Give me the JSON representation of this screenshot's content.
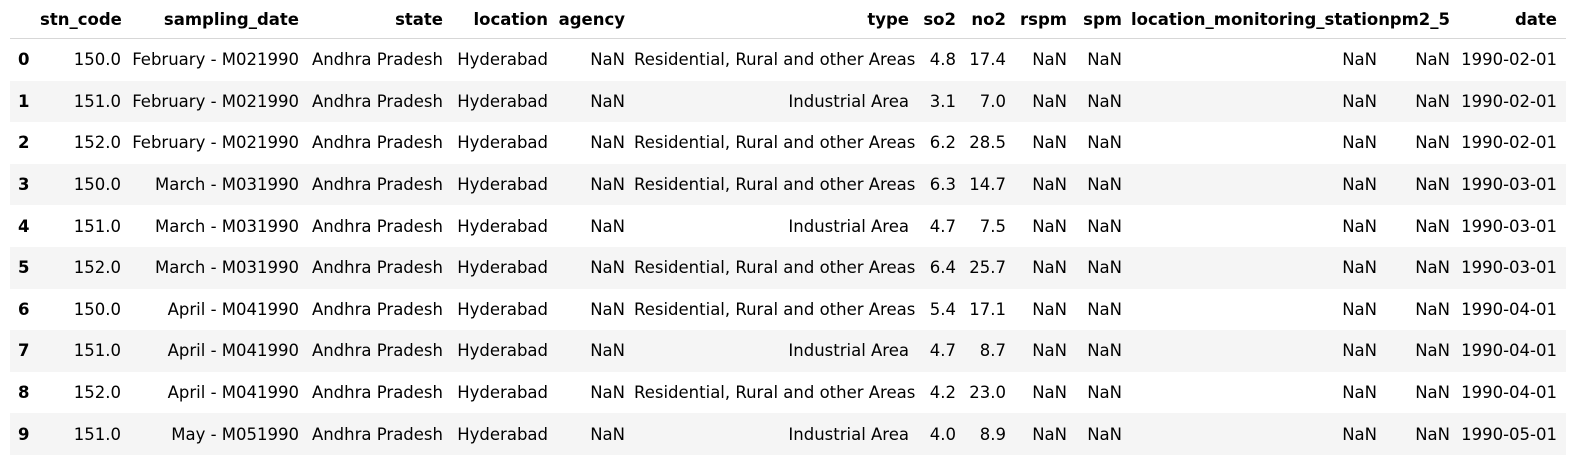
{
  "columns": [
    "stn_code",
    "sampling_date",
    "state",
    "location",
    "agency",
    "type",
    "so2",
    "no2",
    "rspm",
    "spm",
    "location_monitoring_station",
    "pm2_5",
    "date"
  ],
  "rows": [
    {
      "index": "0",
      "cells": [
        "150.0",
        "February - M021990",
        "Andhra Pradesh",
        "Hyderabad",
        "NaN",
        "Residential, Rural and other Areas",
        "4.8",
        "17.4",
        "NaN",
        "NaN",
        "NaN",
        "NaN",
        "1990-02-01"
      ]
    },
    {
      "index": "1",
      "cells": [
        "151.0",
        "February - M021990",
        "Andhra Pradesh",
        "Hyderabad",
        "NaN",
        "Industrial Area",
        "3.1",
        "7.0",
        "NaN",
        "NaN",
        "NaN",
        "NaN",
        "1990-02-01"
      ]
    },
    {
      "index": "2",
      "cells": [
        "152.0",
        "February - M021990",
        "Andhra Pradesh",
        "Hyderabad",
        "NaN",
        "Residential, Rural and other Areas",
        "6.2",
        "28.5",
        "NaN",
        "NaN",
        "NaN",
        "NaN",
        "1990-02-01"
      ]
    },
    {
      "index": "3",
      "cells": [
        "150.0",
        "March - M031990",
        "Andhra Pradesh",
        "Hyderabad",
        "NaN",
        "Residential, Rural and other Areas",
        "6.3",
        "14.7",
        "NaN",
        "NaN",
        "NaN",
        "NaN",
        "1990-03-01"
      ]
    },
    {
      "index": "4",
      "cells": [
        "151.0",
        "March - M031990",
        "Andhra Pradesh",
        "Hyderabad",
        "NaN",
        "Industrial Area",
        "4.7",
        "7.5",
        "NaN",
        "NaN",
        "NaN",
        "NaN",
        "1990-03-01"
      ]
    },
    {
      "index": "5",
      "cells": [
        "152.0",
        "March - M031990",
        "Andhra Pradesh",
        "Hyderabad",
        "NaN",
        "Residential, Rural and other Areas",
        "6.4",
        "25.7",
        "NaN",
        "NaN",
        "NaN",
        "NaN",
        "1990-03-01"
      ]
    },
    {
      "index": "6",
      "cells": [
        "150.0",
        "April - M041990",
        "Andhra Pradesh",
        "Hyderabad",
        "NaN",
        "Residential, Rural and other Areas",
        "5.4",
        "17.1",
        "NaN",
        "NaN",
        "NaN",
        "NaN",
        "1990-04-01"
      ]
    },
    {
      "index": "7",
      "cells": [
        "151.0",
        "April - M041990",
        "Andhra Pradesh",
        "Hyderabad",
        "NaN",
        "Industrial Area",
        "4.7",
        "8.7",
        "NaN",
        "NaN",
        "NaN",
        "NaN",
        "1990-04-01"
      ]
    },
    {
      "index": "8",
      "cells": [
        "152.0",
        "April - M041990",
        "Andhra Pradesh",
        "Hyderabad",
        "NaN",
        "Residential, Rural and other Areas",
        "4.2",
        "23.0",
        "NaN",
        "NaN",
        "NaN",
        "NaN",
        "1990-04-01"
      ]
    },
    {
      "index": "9",
      "cells": [
        "151.0",
        "May - M051990",
        "Andhra Pradesh",
        "Hyderabad",
        "NaN",
        "Industrial Area",
        "4.0",
        "8.9",
        "NaN",
        "NaN",
        "NaN",
        "NaN",
        "1990-05-01"
      ]
    }
  ]
}
